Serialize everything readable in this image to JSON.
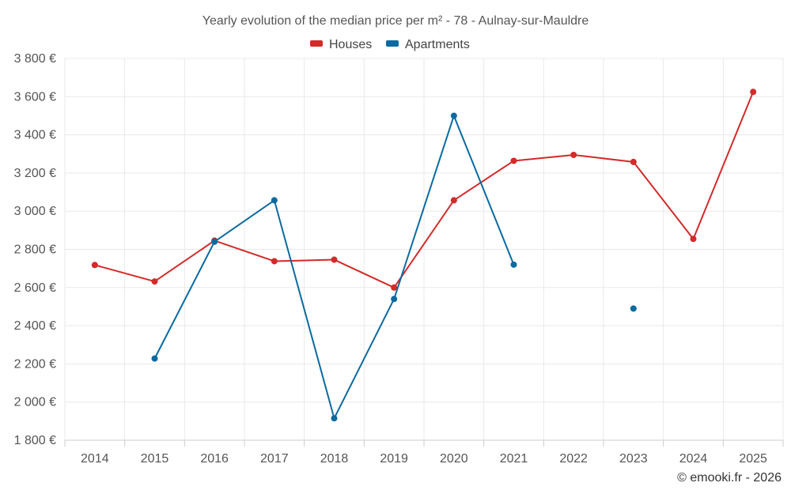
{
  "chart_data": {
    "type": "line",
    "title": "Yearly evolution of the median price per m² - 78 - Aulnay-sur-Mauldre",
    "xlabel": "",
    "ylabel": "",
    "categories": [
      "2014",
      "2015",
      "2016",
      "2017",
      "2018",
      "2019",
      "2020",
      "2021",
      "2022",
      "2023",
      "2024",
      "2025"
    ],
    "ylim": [
      1800,
      3800
    ],
    "yticks": [
      1800,
      2000,
      2200,
      2400,
      2600,
      2800,
      3000,
      3200,
      3400,
      3600,
      3800
    ],
    "ytick_labels": [
      "1 800 €",
      "2 000 €",
      "2 200 €",
      "2 400 €",
      "2 600 €",
      "2 800 €",
      "3 000 €",
      "3 200 €",
      "3 400 €",
      "3 600 €",
      "3 800 €"
    ],
    "grid": true,
    "legend_position": "top-center",
    "series": [
      {
        "name": "Houses",
        "color": "#d32a2a",
        "values": [
          2718,
          2632,
          2846,
          2738,
          2746,
          2600,
          3057,
          3264,
          3295,
          3258,
          2855,
          3625
        ]
      },
      {
        "name": "Apartments",
        "color": "#0b6aa0",
        "values": [
          null,
          2228,
          2840,
          3057,
          1915,
          2540,
          3500,
          2720,
          null,
          2490,
          null,
          null
        ]
      }
    ]
  },
  "credit": "© emooki.fr - 2026"
}
